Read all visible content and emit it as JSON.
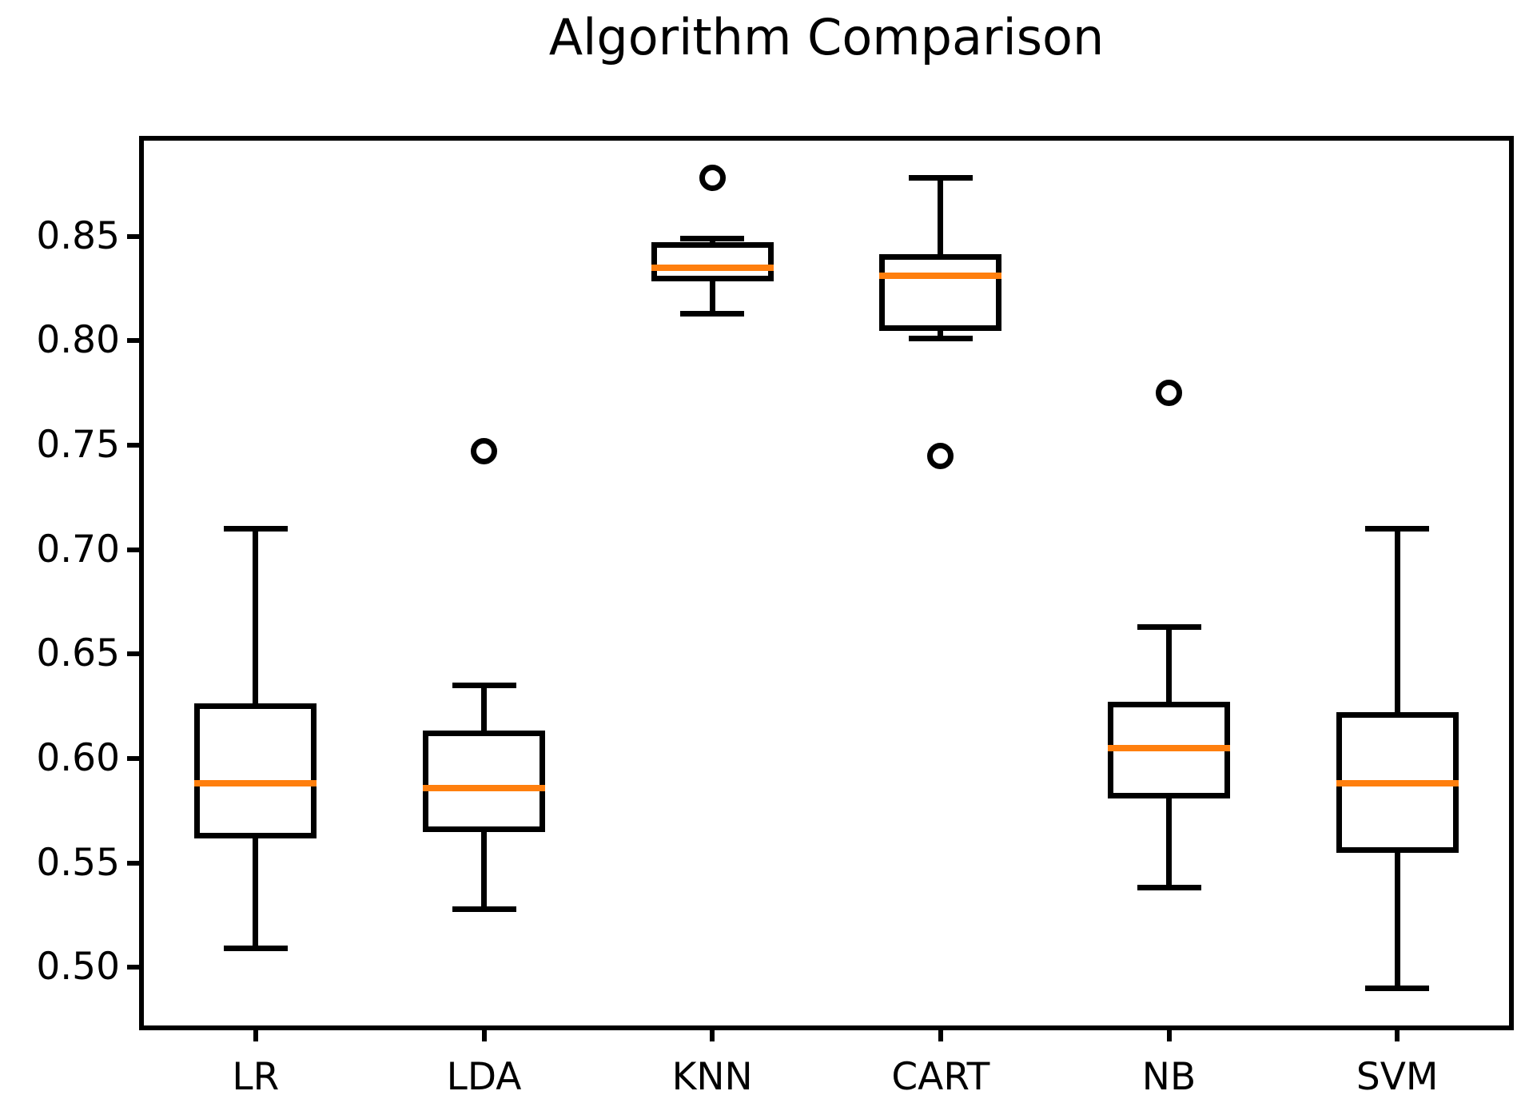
{
  "chart_data": {
    "type": "boxplot",
    "title": "Algorithm Comparison",
    "categories": [
      "LR",
      "LDA",
      "KNN",
      "CART",
      "NB",
      "SVM"
    ],
    "series": [
      {
        "name": "LR",
        "whisker_low": 0.509,
        "q1": 0.563,
        "median": 0.588,
        "q3": 0.625,
        "whisker_high": 0.71,
        "outliers": []
      },
      {
        "name": "LDA",
        "whisker_low": 0.528,
        "q1": 0.566,
        "median": 0.586,
        "q3": 0.612,
        "whisker_high": 0.635,
        "outliers": [
          0.747
        ]
      },
      {
        "name": "KNN",
        "whisker_low": 0.813,
        "q1": 0.83,
        "median": 0.835,
        "q3": 0.846,
        "whisker_high": 0.849,
        "outliers": [
          0.878
        ]
      },
      {
        "name": "CART",
        "whisker_low": 0.801,
        "q1": 0.806,
        "median": 0.831,
        "q3": 0.84,
        "whisker_high": 0.878,
        "outliers": [
          0.745
        ]
      },
      {
        "name": "NB",
        "whisker_low": 0.538,
        "q1": 0.582,
        "median": 0.605,
        "q3": 0.626,
        "whisker_high": 0.663,
        "outliers": [
          0.775
        ]
      },
      {
        "name": "SVM",
        "whisker_low": 0.49,
        "q1": 0.556,
        "median": 0.588,
        "q3": 0.621,
        "whisker_high": 0.71,
        "outliers": []
      }
    ],
    "ytick_labels": [
      "0.50",
      "0.55",
      "0.60",
      "0.65",
      "0.70",
      "0.75",
      "0.80",
      "0.85"
    ],
    "yticks": [
      0.5,
      0.55,
      0.6,
      0.65,
      0.7,
      0.75,
      0.8,
      0.85
    ],
    "ylim": [
      0.471,
      0.897
    ],
    "xlabel": "",
    "ylabel": "",
    "grid": false,
    "legend": "none",
    "colors": {
      "box_line": "#000000",
      "median_line": "#ff7f0e",
      "background": "#ffffff",
      "text": "#000000"
    }
  }
}
